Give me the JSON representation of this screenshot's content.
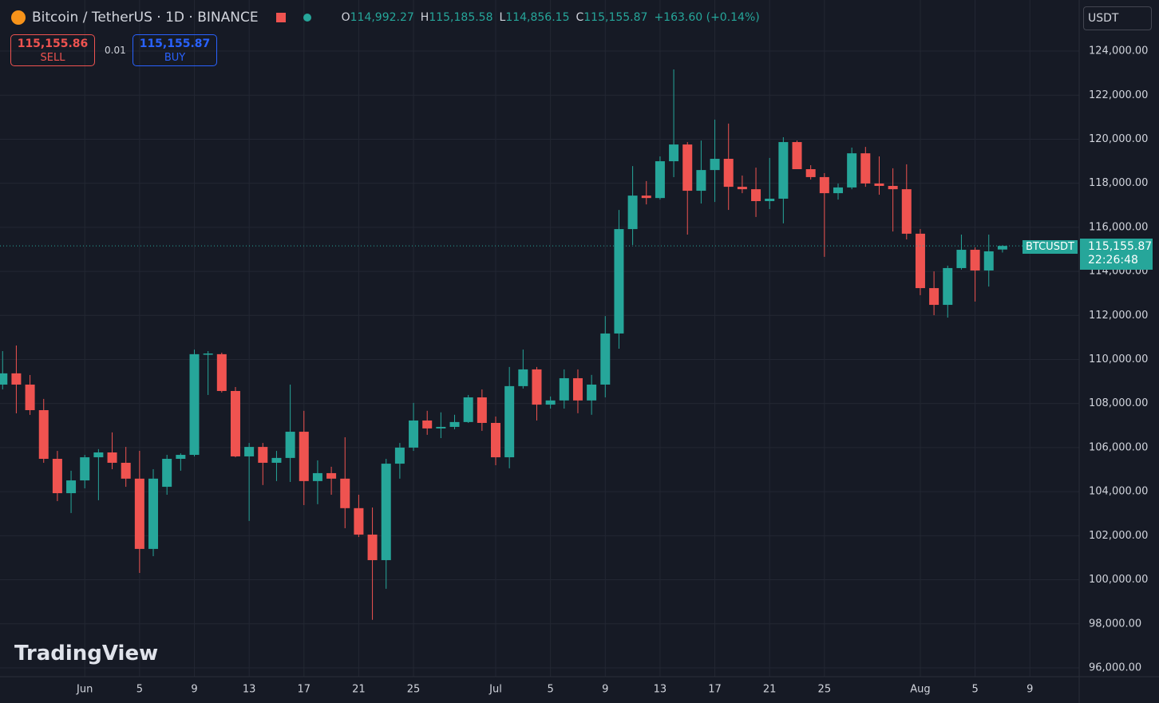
{
  "header": {
    "symbol": "Bitcoin / TetherUS · 1D · BINANCE",
    "ohlc": [
      {
        "key": "O",
        "value": "114,992.27"
      },
      {
        "key": "H",
        "value": "115,185.58"
      },
      {
        "key": "L",
        "value": "114,856.15"
      },
      {
        "key": "C",
        "value": "115,155.87"
      }
    ],
    "change": "+163.60 (+0.14%)"
  },
  "trade": {
    "sell_price": "115,155.86",
    "sell": "SELL",
    "spread": "0.01",
    "buy_price": "115,155.87",
    "buy": "BUY"
  },
  "currency": "USDT",
  "price_tag": {
    "symbol": "BTCUSDT",
    "price": "115,155.87",
    "countdown": "22:26:48"
  },
  "watermark": "TradingView",
  "chart_data": {
    "type": "candlestick",
    "up_color": "#26a69a",
    "down_color": "#ef5350",
    "grid": true,
    "open": [
      108860,
      109370,
      108860,
      107700,
      105490,
      103930,
      104510,
      105560,
      105780,
      105310,
      104590,
      101400,
      104220,
      105490,
      105670,
      110240,
      110240,
      108570,
      105600,
      106030,
      105310,
      105530,
      106720,
      104480,
      104840,
      104590,
      103250,
      102050,
      100890,
      105270,
      106000,
      107230,
      106870,
      106940,
      107160,
      108280,
      107120,
      105560,
      108790,
      109550,
      107950,
      108140,
      109150,
      108140,
      108860,
      111180,
      115920,
      117440,
      117330,
      119000,
      119760,
      117660,
      118600,
      119110,
      117840,
      117730,
      117190,
      117300,
      119870,
      118640,
      118280,
      117550,
      117810,
      119360,
      117990,
      117880,
      117730,
      115710,
      113240,
      112480,
      114150,
      114980,
      114040,
      114992.27
    ],
    "high": [
      110380,
      110635,
      109295,
      108210,
      105850,
      104950,
      105670,
      105930,
      106690,
      106030,
      105850,
      105020,
      105670,
      105740,
      110450,
      110380,
      110310,
      108750,
      106210,
      106210,
      105850,
      108860,
      107670,
      105420,
      105130,
      106470,
      103860,
      103280,
      105490,
      106210,
      108030,
      107670,
      107600,
      107490,
      108390,
      108640,
      107410,
      109660,
      110450,
      109660,
      108320,
      109550,
      109550,
      109300,
      111970,
      116790,
      118780,
      118100,
      119220,
      123170,
      119870,
      119940,
      120890,
      120710,
      118350,
      118710,
      119150,
      120090,
      119940,
      118820,
      118460,
      117990,
      119620,
      119650,
      119220,
      118680,
      118860,
      115920,
      114000,
      114260,
      115670,
      115090,
      115670,
      115185.58
    ],
    "low": [
      108640,
      107556,
      107485,
      105310,
      103570,
      103030,
      104150,
      103610,
      105020,
      104220,
      100310,
      101070,
      103860,
      104950,
      105600,
      108390,
      108500,
      105560,
      102670,
      104300,
      104480,
      104440,
      103390,
      103430,
      103860,
      102340,
      101940,
      98180,
      99590,
      104590,
      105850,
      106580,
      106430,
      106830,
      107120,
      106760,
      105200,
      105060,
      108680,
      107230,
      107770,
      107770,
      107560,
      107490,
      108280,
      110490,
      115200,
      117040,
      117260,
      118280,
      115670,
      117080,
      117150,
      116790,
      117550,
      116470,
      116830,
      116180,
      118640,
      118170,
      114660,
      117260,
      117730,
      117840,
      117480,
      115810,
      115450,
      112920,
      112010,
      111900,
      114080,
      112630,
      113310,
      114856.15
    ],
    "close": [
      109370,
      108860,
      107700,
      105490,
      103930,
      104510,
      105560,
      105780,
      105310,
      104590,
      101400,
      104590,
      105490,
      105670,
      110240,
      110270,
      108570,
      105600,
      106030,
      105310,
      105530,
      106720,
      104480,
      104840,
      104590,
      103250,
      102050,
      100890,
      105270,
      106000,
      107230,
      106870,
      106940,
      107160,
      108280,
      107120,
      105560,
      108790,
      109550,
      107950,
      108140,
      109150,
      108140,
      108860,
      111180,
      115920,
      117440,
      117330,
      119000,
      119760,
      117660,
      118600,
      119110,
      117840,
      117730,
      117190,
      117300,
      119870,
      118640,
      118280,
      117550,
      117810,
      119360,
      117990,
      117880,
      117730,
      115710,
      113240,
      112480,
      114150,
      114980,
      114040,
      114910,
      115155.87
    ],
    "xlim": [
      -0.19,
      78.6
    ],
    "xticks": [
      {
        "value": 6,
        "label": "Jun"
      },
      {
        "value": 10,
        "label": "5"
      },
      {
        "value": 14,
        "label": "9"
      },
      {
        "value": 18,
        "label": "13"
      },
      {
        "value": 22,
        "label": "17"
      },
      {
        "value": 26,
        "label": "21"
      },
      {
        "value": 30,
        "label": "25"
      },
      {
        "value": 36,
        "label": "Jul"
      },
      {
        "value": 40,
        "label": "5"
      },
      {
        "value": 44,
        "label": "9"
      },
      {
        "value": 48,
        "label": "13"
      },
      {
        "value": 52,
        "label": "17"
      },
      {
        "value": 56,
        "label": "21"
      },
      {
        "value": 60,
        "label": "25"
      },
      {
        "value": 67,
        "label": "Aug"
      },
      {
        "value": 71,
        "label": "5"
      },
      {
        "value": 75,
        "label": "9"
      }
    ],
    "ylim": [
      95600,
      126320
    ],
    "yticks": [
      {
        "value": 96000,
        "label": "96,000.00"
      },
      {
        "value": 98000,
        "label": "98,000.00"
      },
      {
        "value": 100000,
        "label": "100,000.00"
      },
      {
        "value": 102000,
        "label": "102,000.00"
      },
      {
        "value": 104000,
        "label": "104,000.00"
      },
      {
        "value": 106000,
        "label": "106,000.00"
      },
      {
        "value": 108000,
        "label": "108,000.00"
      },
      {
        "value": 110000,
        "label": "110,000.00"
      },
      {
        "value": 112000,
        "label": "112,000.00"
      },
      {
        "value": 114000,
        "label": "114,000.00"
      },
      {
        "value": 116000,
        "label": "116,000.00"
      },
      {
        "value": 118000,
        "label": "118,000.00"
      },
      {
        "value": 120000,
        "label": "120,000.00"
      },
      {
        "value": 122000,
        "label": "122,000.00"
      },
      {
        "value": 124000,
        "label": "124,000.00"
      }
    ]
  }
}
